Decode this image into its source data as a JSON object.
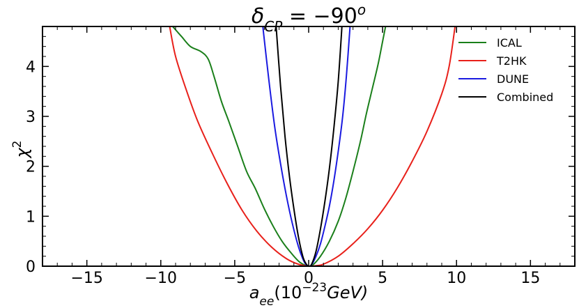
{
  "chart_data": {
    "type": "line",
    "title_parts": {
      "main": "δ",
      "sub": "CP",
      "eq": " = −90",
      "sup": "o"
    },
    "xlabel_parts": {
      "main": "a",
      "sub": "ee",
      "paren": "(10",
      "sup": "−23",
      "unit": "GeV)"
    },
    "ylabel_parts": {
      "main": "χ",
      "sup": "2"
    },
    "xlim": [
      -18,
      18
    ],
    "ylim": [
      0,
      4.8
    ],
    "xticks": [
      -15,
      -10,
      -5,
      0,
      5,
      10,
      15
    ],
    "xtick_labels": [
      "−15",
      "−10",
      "−5",
      "0",
      "5",
      "10",
      "15"
    ],
    "yticks": [
      0,
      1,
      2,
      3,
      4
    ],
    "ytick_labels": [
      "0",
      "1",
      "2",
      "3",
      "4"
    ],
    "legend_position": "top-right",
    "series": [
      {
        "name": "ICAL",
        "color": "#1a7f1a",
        "points": [
          [
            -9.2,
            4.8
          ],
          [
            -8.6,
            4.6
          ],
          [
            -8.0,
            4.4
          ],
          [
            -7.3,
            4.3
          ],
          [
            -6.8,
            4.15
          ],
          [
            -6.4,
            3.8
          ],
          [
            -5.9,
            3.3
          ],
          [
            -5.4,
            2.9
          ],
          [
            -4.8,
            2.4
          ],
          [
            -4.2,
            1.9
          ],
          [
            -3.6,
            1.55
          ],
          [
            -3.0,
            1.15
          ],
          [
            -2.4,
            0.8
          ],
          [
            -1.8,
            0.5
          ],
          [
            -1.2,
            0.27
          ],
          [
            -0.6,
            0.08
          ],
          [
            0,
            0
          ],
          [
            0.3,
            0.03
          ],
          [
            0.8,
            0.2
          ],
          [
            1.4,
            0.5
          ],
          [
            2.0,
            0.9
          ],
          [
            2.5,
            1.35
          ],
          [
            3.0,
            1.9
          ],
          [
            3.5,
            2.5
          ],
          [
            3.9,
            3.05
          ],
          [
            4.3,
            3.55
          ],
          [
            4.7,
            4.05
          ],
          [
            5.0,
            4.5
          ],
          [
            5.2,
            4.8
          ]
        ]
      },
      {
        "name": "T2HK",
        "color": "#e8201a",
        "points": [
          [
            -9.4,
            4.8
          ],
          [
            -9.0,
            4.2
          ],
          [
            -8.3,
            3.55
          ],
          [
            -7.5,
            2.9
          ],
          [
            -6.5,
            2.25
          ],
          [
            -5.5,
            1.65
          ],
          [
            -4.5,
            1.12
          ],
          [
            -3.5,
            0.7
          ],
          [
            -2.5,
            0.38
          ],
          [
            -1.5,
            0.15
          ],
          [
            -0.7,
            0.04
          ],
          [
            0,
            0
          ],
          [
            0.5,
            0.01
          ],
          [
            1.0,
            0.04
          ],
          [
            2.0,
            0.2
          ],
          [
            3.0,
            0.45
          ],
          [
            4.0,
            0.75
          ],
          [
            5.0,
            1.12
          ],
          [
            6.0,
            1.57
          ],
          [
            7.0,
            2.1
          ],
          [
            8.0,
            2.7
          ],
          [
            9.0,
            3.45
          ],
          [
            9.5,
            4.0
          ],
          [
            9.9,
            4.8
          ]
        ]
      },
      {
        "name": "DUNE",
        "color": "#1a1ae0",
        "points": [
          [
            -3.1,
            4.8
          ],
          [
            -2.7,
            3.75
          ],
          [
            -2.3,
            2.8
          ],
          [
            -1.9,
            2.05
          ],
          [
            -1.5,
            1.4
          ],
          [
            -1.1,
            0.85
          ],
          [
            -0.7,
            0.4
          ],
          [
            -0.4,
            0.15
          ],
          [
            -0.2,
            0.04
          ],
          [
            0,
            0
          ],
          [
            0.2,
            0.03
          ],
          [
            0.5,
            0.2
          ],
          [
            0.8,
            0.45
          ],
          [
            1.1,
            0.8
          ],
          [
            1.4,
            1.2
          ],
          [
            1.7,
            1.7
          ],
          [
            2.0,
            2.3
          ],
          [
            2.3,
            3.0
          ],
          [
            2.55,
            3.8
          ],
          [
            2.8,
            4.8
          ]
        ]
      },
      {
        "name": "Combined",
        "color": "#000000",
        "points": [
          [
            -2.2,
            4.8
          ],
          [
            -1.9,
            3.6
          ],
          [
            -1.6,
            2.6
          ],
          [
            -1.3,
            1.8
          ],
          [
            -1.0,
            1.15
          ],
          [
            -0.7,
            0.6
          ],
          [
            -0.4,
            0.2
          ],
          [
            -0.2,
            0.06
          ],
          [
            0,
            0
          ],
          [
            0.2,
            0.04
          ],
          [
            0.5,
            0.3
          ],
          [
            0.8,
            0.75
          ],
          [
            1.1,
            1.3
          ],
          [
            1.4,
            1.95
          ],
          [
            1.7,
            2.75
          ],
          [
            2.0,
            3.7
          ],
          [
            2.25,
            4.8
          ]
        ]
      }
    ]
  }
}
